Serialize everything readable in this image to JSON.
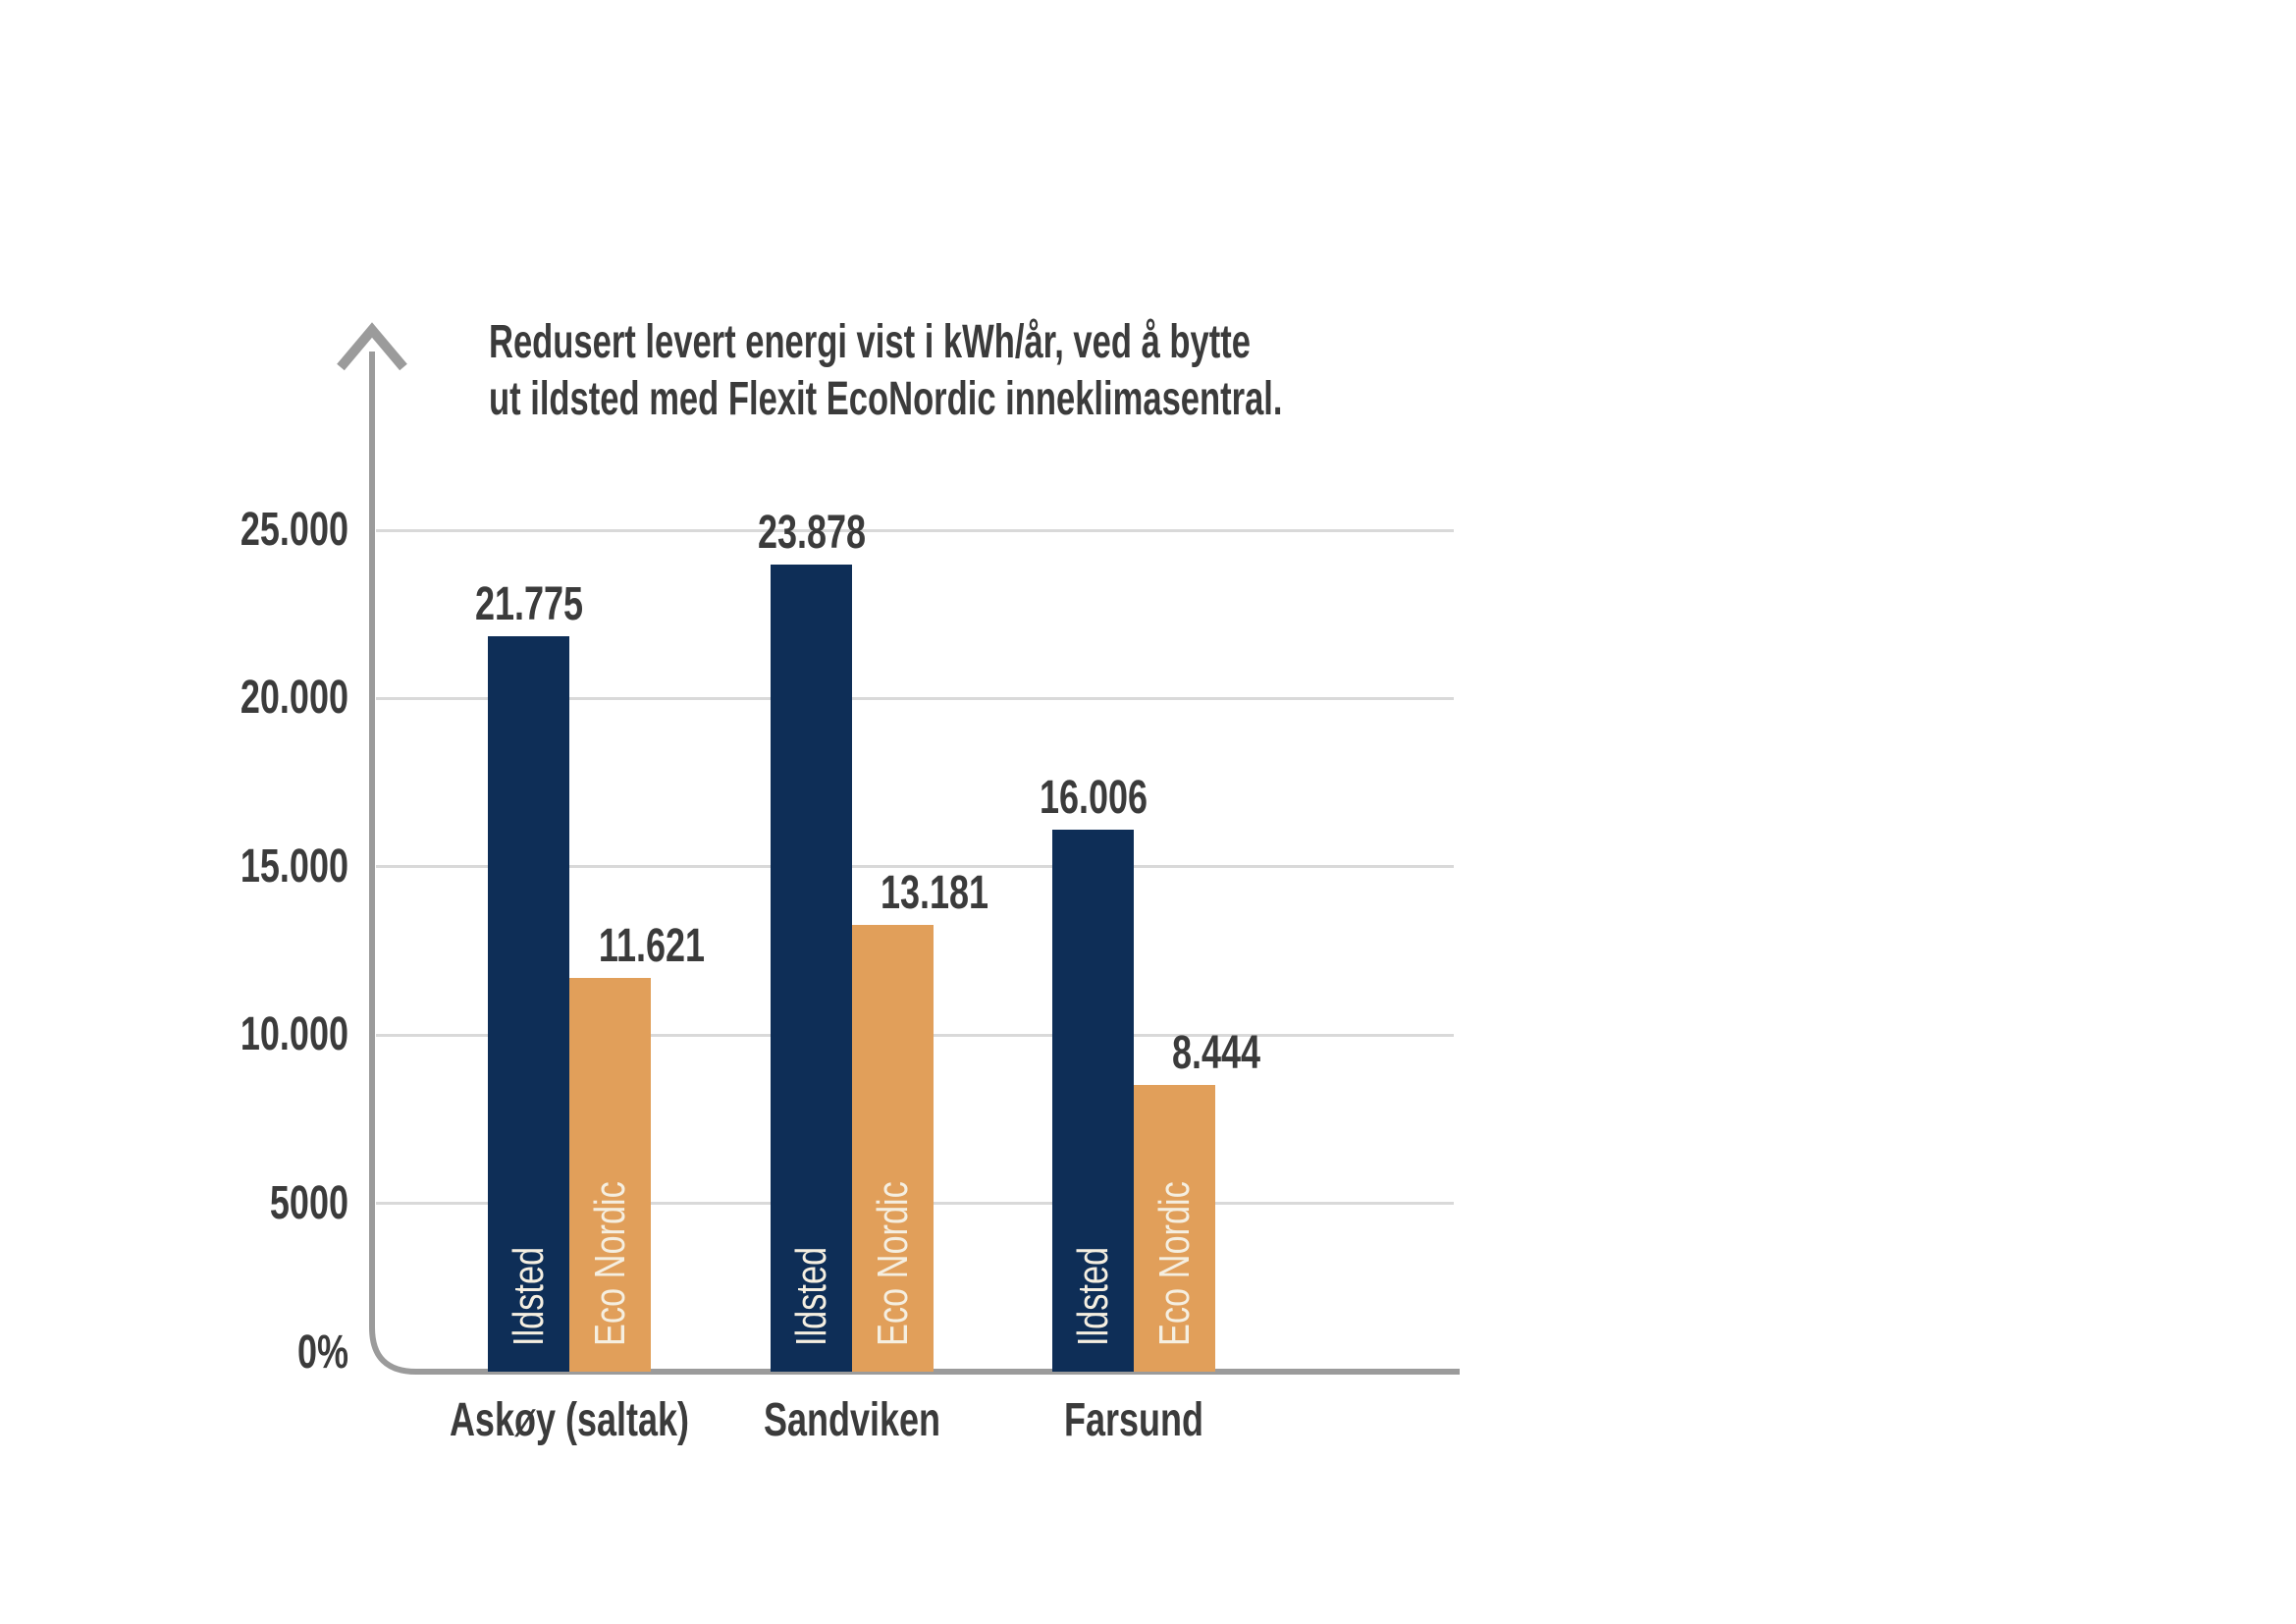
{
  "colors": {
    "navy": "#0e2e57",
    "orange": "#e19f5a",
    "axis": "#9b9b9b",
    "grid": "#d9d9d9",
    "text": "#3b3b3b",
    "in_bar_label": "#f5efe1",
    "background": "#ffffff"
  },
  "chart_data": {
    "type": "bar",
    "title": "Redusert levert energi vist i kWh/år, ved å bytte ut ildsted med Flexit EcoNordic inneklimasentral.",
    "title_lines": [
      "Redusert levert energi vist i kWh/år, ved å bytte",
      "ut ildsted med Flexit EcoNordic inneklimasentral."
    ],
    "unit": "kWh/år",
    "categories": [
      "Askøy (saltak)",
      "Sandviken",
      "Farsund"
    ],
    "series": [
      {
        "name": "Ildsted",
        "values": [
          21775,
          23878,
          16006
        ],
        "value_labels": [
          "21.775",
          "23.878",
          "16.006"
        ],
        "color": "#0e2e57"
      },
      {
        "name": "Eco Nordic",
        "values": [
          11621,
          13181,
          8444
        ],
        "value_labels": [
          "11.621",
          "13.181",
          "8.444"
        ],
        "color": "#e19f5a"
      }
    ],
    "y_ticks": [
      {
        "label": "25.000",
        "value": 25000
      },
      {
        "label": "20.000",
        "value": 20000
      },
      {
        "label": "15.000",
        "value": 15000
      },
      {
        "label": "10.000",
        "value": 10000
      },
      {
        "label": "5000",
        "value": 5000
      },
      {
        "label": "0%",
        "value": 0
      }
    ],
    "ylim": [
      0,
      25000
    ],
    "xlabel": "",
    "ylabel": "",
    "grid": "horizontal",
    "legend": "labels-inside-bars",
    "y_axis_arrow": true
  }
}
